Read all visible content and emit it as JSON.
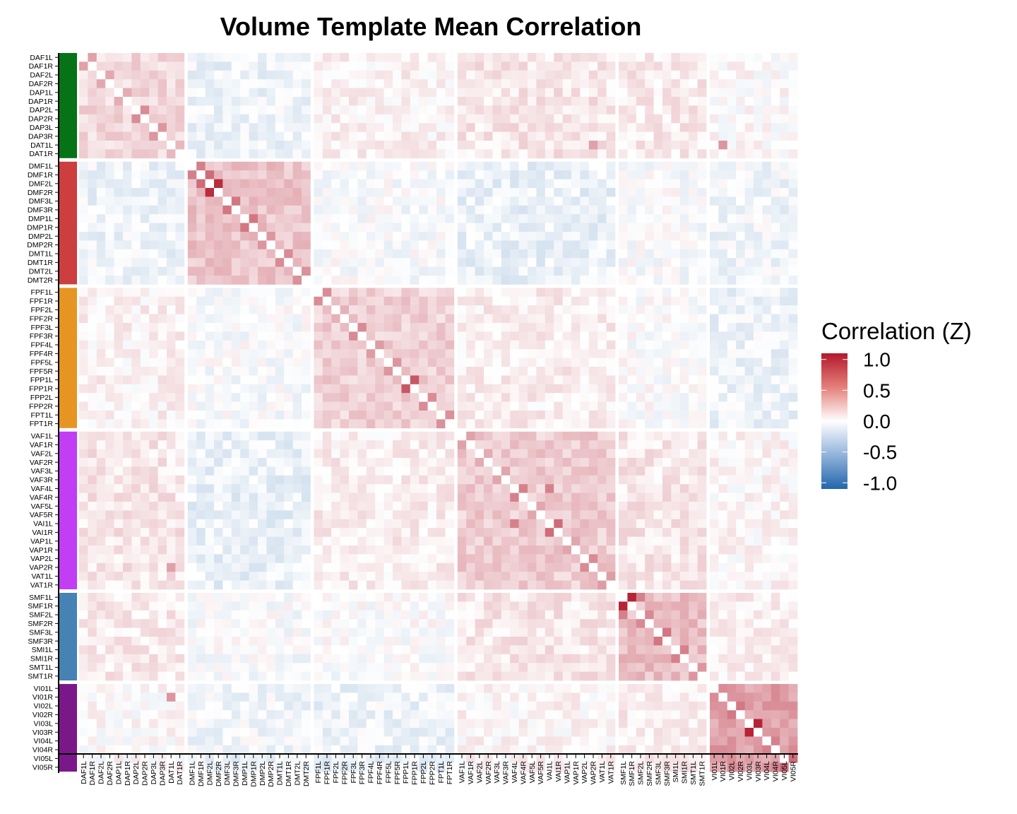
{
  "chart_data": {
    "type": "heatmap",
    "title": "Volume Template Mean Correlation",
    "labels": [
      "DAF1L",
      "DAF1R",
      "DAF2L",
      "DAF2R",
      "DAP1L",
      "DAP1R",
      "DAP2L",
      "DAP2R",
      "DAP3L",
      "DAP3R",
      "DAT1L",
      "DAT1R",
      "DMF1L",
      "DMF1R",
      "DMF2L",
      "DMF2R",
      "DMF3L",
      "DMF3R",
      "DMP1L",
      "DMP1R",
      "DMP2L",
      "DMP2R",
      "DMT1L",
      "DMT1R",
      "DMT2L",
      "DMT2R",
      "FPF1L",
      "FPF1R",
      "FPF2L",
      "FPF2R",
      "FPF3L",
      "FPF3R",
      "FPF4L",
      "FPF4R",
      "FPF5L",
      "FPF5R",
      "FPP1L",
      "FPP1R",
      "FPP2L",
      "FPP2R",
      "FPT1L",
      "FPT1R",
      "VAF1L",
      "VAF1R",
      "VAF2L",
      "VAF2R",
      "VAF3L",
      "VAF3R",
      "VAF4L",
      "VAF4R",
      "VAF5L",
      "VAF5R",
      "VAI1L",
      "VAI1R",
      "VAP1L",
      "VAP1R",
      "VAP2L",
      "VAP2R",
      "VAT1L",
      "VAT1R",
      "SMF1L",
      "SMF1R",
      "SMF2L",
      "SMF2R",
      "SMF3L",
      "SMF3R",
      "SMI1L",
      "SMI1R",
      "SMT1L",
      "SMT1R",
      "VI01L",
      "VI01R",
      "VI02L",
      "VI02R",
      "VI03L",
      "VI03R",
      "VI04L",
      "VI04R",
      "VI05L",
      "VI05R"
    ],
    "groups": [
      {
        "start": 0,
        "count": 12,
        "color": "#067316"
      },
      {
        "start": 12,
        "count": 14,
        "color": "#cd3e3e"
      },
      {
        "start": 26,
        "count": 16,
        "color": "#e69522"
      },
      {
        "start": 42,
        "count": 18,
        "color": "#c13ef5"
      },
      {
        "start": 60,
        "count": 10,
        "color": "#4682b4"
      },
      {
        "start": 70,
        "count": 10,
        "color": "#7b1889"
      }
    ],
    "block_means": [
      [
        0.18,
        -0.08,
        0.06,
        0.12,
        0.1,
        0.02
      ],
      [
        -0.08,
        0.28,
        -0.02,
        -0.1,
        -0.02,
        -0.06
      ],
      [
        0.06,
        -0.02,
        0.22,
        0.08,
        0.0,
        -0.08
      ],
      [
        0.12,
        -0.1,
        0.08,
        0.24,
        0.12,
        0.04
      ],
      [
        0.1,
        -0.02,
        0.0,
        0.12,
        0.3,
        0.08
      ],
      [
        0.02,
        -0.06,
        -0.08,
        0.04,
        0.08,
        0.45
      ]
    ],
    "strong_pairs": [
      [
        "DMF2L",
        "DMF2R",
        1.0
      ],
      [
        "DMF1R",
        "DMF2L",
        0.7
      ],
      [
        "DMF3L",
        "DMF3R",
        0.65
      ],
      [
        "DMP1L",
        "DMP1R",
        0.65
      ],
      [
        "DMP2L",
        "DMP2R",
        0.5
      ],
      [
        "DMT1L",
        "DMT1R",
        0.55
      ],
      [
        "FPP1L",
        "FPP1R",
        0.8
      ],
      [
        "FPF1L",
        "FPF1R",
        0.55
      ],
      [
        "FPF5L",
        "FPF5R",
        0.5
      ],
      [
        "FPP2L",
        "FPP2R",
        0.55
      ],
      [
        "VAF4L",
        "VAF4R",
        0.6
      ],
      [
        "VAI1L",
        "VAI1R",
        0.7
      ],
      [
        "VAF4L",
        "VAI1L",
        0.6
      ],
      [
        "VAP2L",
        "VAP2R",
        0.55
      ],
      [
        "VAF1L",
        "VAF1R",
        0.45
      ],
      [
        "SMF1L",
        "SMF1R",
        1.05
      ],
      [
        "SMF1L",
        "SMF2L",
        0.6
      ],
      [
        "SMF3L",
        "SMF3R",
        0.65
      ],
      [
        "SMI1L",
        "SMI1R",
        0.6
      ],
      [
        "SMT1L",
        "SMT1R",
        0.5
      ],
      [
        "VI03L",
        "VI03R",
        1.05
      ],
      [
        "VI04L",
        "VI04R",
        0.6
      ],
      [
        "VI05L",
        "VI05R",
        0.7
      ],
      [
        "VI01L",
        "VI01R",
        0.55
      ],
      [
        "VI02L",
        "VI03L",
        0.5
      ],
      [
        "DAF1L",
        "DAF1R",
        0.45
      ],
      [
        "DAP2L",
        "DAP2R",
        0.55
      ],
      [
        "DAP3L",
        "DAP3R",
        0.5
      ],
      [
        "DAT1L",
        "VI01R",
        0.5
      ],
      [
        "DAT1L",
        "VAP2R",
        0.45
      ]
    ],
    "colorbar": {
      "title": "Correlation (Z)",
      "ticks": [
        "1.0",
        "0.5",
        "0.0",
        "-0.5",
        "-1.0"
      ],
      "range": [
        -1.1,
        1.1
      ],
      "colors": {
        "low": "#2166ac",
        "mid": "#ffffff",
        "high": "#b2182b"
      }
    }
  }
}
